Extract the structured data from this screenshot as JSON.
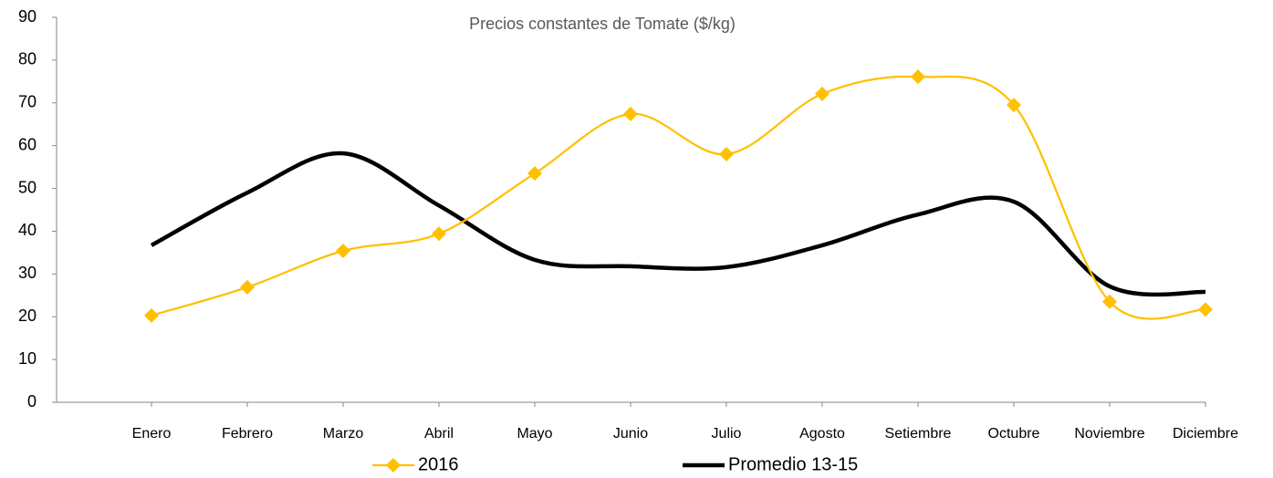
{
  "chart_data": {
    "type": "line",
    "title": "Precios constantes de Tomate  ($/kg)",
    "categories": [
      "Enero",
      "Febrero",
      "Marzo",
      "Abril",
      "Mayo",
      "Junio",
      "Julio",
      "Agosto",
      "Setiembre",
      "Octubre",
      "Noviembre",
      "Diciembre"
    ],
    "series": [
      {
        "name": "2016",
        "color": "#FFC000",
        "marker": "diamond",
        "values": [
          20.3,
          26.9,
          35.4,
          39.4,
          53.5,
          67.4,
          58,
          72.1,
          76.1,
          69.5,
          23.5,
          21.7
        ]
      },
      {
        "name": "Promedio 13-15",
        "color": "#000000",
        "values": [
          36.7,
          49,
          58.2,
          46,
          33.3,
          31.8,
          31.6,
          36.7,
          43.9,
          46.9,
          27.1,
          25.8
        ]
      }
    ],
    "ylim": [
      0,
      90
    ],
    "yticks": [
      0,
      10,
      20,
      30,
      40,
      50,
      60,
      70,
      80,
      90
    ],
    "smooth": true,
    "legend": "bottom"
  }
}
